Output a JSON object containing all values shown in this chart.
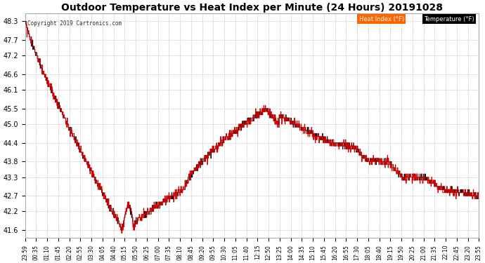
{
  "title": "Outdoor Temperature vs Heat Index per Minute (24 Hours) 20191028",
  "copyright": "Copyright 2019 Cartronics.com",
  "legend_heat_label": "Heat Index (°F)",
  "legend_temp_label": "Temperature (°F)",
  "legend_heat_bg": "#ff6600",
  "legend_heat_text": "#ffffff",
  "legend_temp_bg": "#000000",
  "legend_temp_text": "#ffffff",
  "heat_color": "#cc0000",
  "temp_color": "#000000",
  "bg_color": "#ffffff",
  "grid_color": "#bbbbbb",
  "title_fontsize": 11,
  "yticks": [
    41.6,
    42.2,
    42.7,
    43.3,
    43.8,
    44.4,
    45.0,
    45.5,
    46.1,
    46.6,
    47.2,
    47.7,
    48.3
  ],
  "ylim": [
    41.35,
    48.55
  ],
  "xtick_labels": [
    "23:59",
    "00:35",
    "01:10",
    "01:45",
    "02:20",
    "02:55",
    "03:30",
    "04:05",
    "04:40",
    "05:15",
    "05:50",
    "06:25",
    "07:00",
    "07:35",
    "08:10",
    "08:45",
    "09:20",
    "09:55",
    "10:30",
    "11:05",
    "11:40",
    "12:15",
    "12:50",
    "13:25",
    "14:00",
    "14:35",
    "15:10",
    "15:45",
    "16:20",
    "16:55",
    "17:30",
    "18:05",
    "18:40",
    "19:15",
    "19:50",
    "20:25",
    "21:00",
    "21:35",
    "22:10",
    "22:45",
    "23:20",
    "23:55"
  ],
  "n_points": 1440
}
